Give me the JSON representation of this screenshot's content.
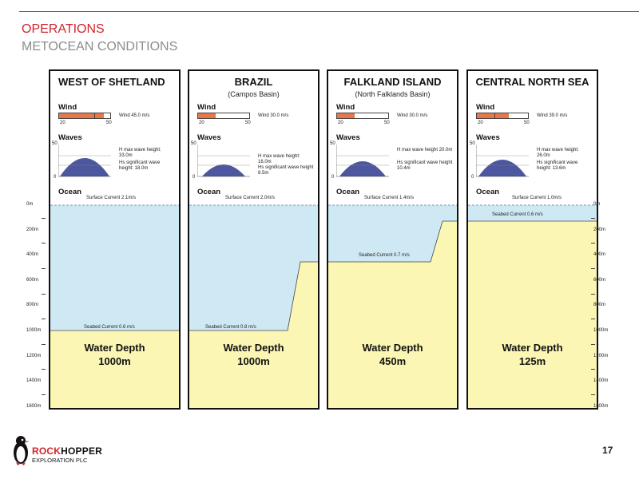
{
  "header": {
    "title": "OPERATIONS",
    "subtitle": "METOCEAN CONDITIONS"
  },
  "page_number": "17",
  "logo": {
    "name_accent": "ROCK",
    "name_rest": "HOPPER",
    "tagline": "EXPLORATION PLC"
  },
  "labels": {
    "wind": "Wind",
    "waves": "Waves",
    "ocean": "Ocean",
    "water_depth": "Water Depth"
  },
  "wind_scale": {
    "min": "20",
    "max": "50"
  },
  "wave_scale": {
    "top": "50",
    "bottom": "0"
  },
  "depth_axis": [
    "0m",
    "200m",
    "400m",
    "600m",
    "800m",
    "1000m",
    "1200m",
    "1400m",
    "1600m"
  ],
  "panels": [
    {
      "title": "WEST OF SHETLAND",
      "subtitle": "",
      "wind_text": "Wind 45.0 m/s",
      "wind_value": 45,
      "wave_max": "H max wave height: 33.0m",
      "wave_sig": "Hs significant wave height: 18.0m",
      "surface_current": "Surface Current 2.1m/s",
      "seabed_current": "Seabed Current 0.6 m/s",
      "depth": "1000m"
    },
    {
      "title": "BRAZIL",
      "subtitle": "(Campos Basin)",
      "wind_text": "Wind 30.0 m/s",
      "wind_value": 30,
      "wave_max": "H max wave height: 16.0m",
      "wave_sig": "Hs significant wave height 8.5m",
      "surface_current": "Surface Current 2.0m/s",
      "seabed_current": "Seabed Current 0.8 m/s",
      "depth": "1000m"
    },
    {
      "title": "FALKLAND ISLAND",
      "subtitle": "(North Falklands Basin)",
      "wind_text": "Wind 30.0 m/s",
      "wind_value": 30,
      "wave_max": "H max wave height 20.0m",
      "wave_sig": "Hs significant wave height 10.4m",
      "surface_current": "Surface Current 1.4m/s",
      "seabed_current": "Seabed Current 0.7 m/s",
      "depth": "450m"
    },
    {
      "title": "CENTRAL NORTH SEA",
      "subtitle": "",
      "wind_text": "Wind 39.0 m/s",
      "wind_value": 39,
      "wave_max": "H max wave height: 26.0m",
      "wave_sig": "Hs significant wave height: 13.6m",
      "surface_current": "Surface Current 1.0m/s",
      "seabed_current": "Seabed Current 0.6 m/s",
      "depth": "125m"
    }
  ],
  "colors": {
    "accent": "#d0272d",
    "water": "#cfe9f4",
    "seabed": "#fbf6b4",
    "wind": "#e8774a",
    "wave": "#2d3a8c"
  }
}
